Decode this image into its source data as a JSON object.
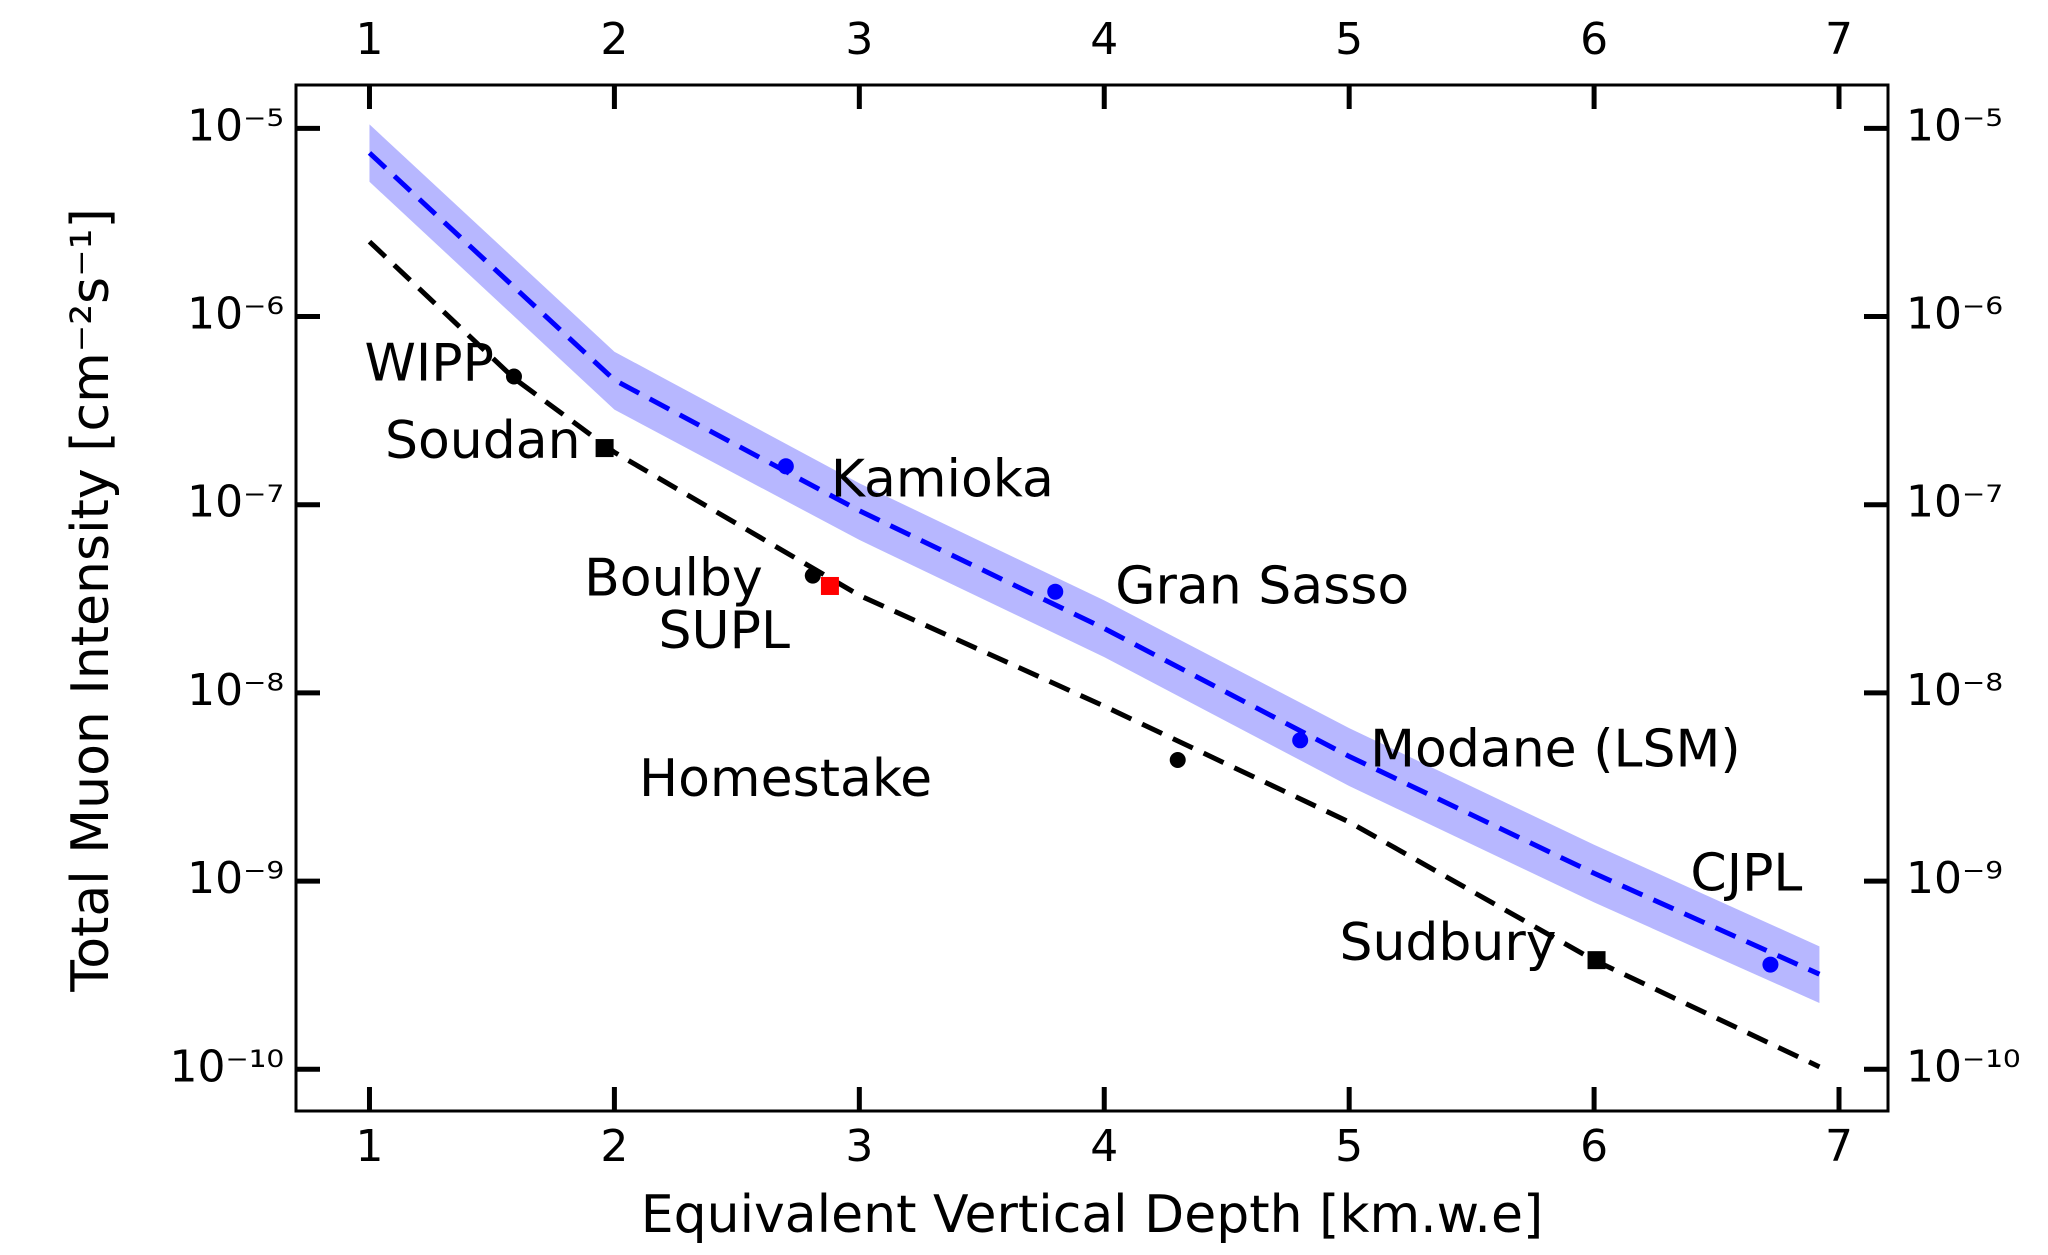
{
  "chart_data": {
    "type": "line",
    "x_label": "Equivalent Vertical Depth [km.w.e]",
    "y_label": "Total Muon Intensity [cm⁻²s⁻¹]",
    "xlim": [
      0.7,
      7.2
    ],
    "xticks": [
      1,
      2,
      3,
      4,
      5,
      6,
      7
    ],
    "ylim": [
      6e-11,
      1.7e-05
    ],
    "log_y": true,
    "yticks": [
      {
        "value": 1e-05,
        "label": "10⁻⁵"
      },
      {
        "value": 1e-06,
        "label": "10⁻⁶"
      },
      {
        "value": 1e-07,
        "label": "10⁻⁷"
      },
      {
        "value": 1e-08,
        "label": "10⁻⁸"
      },
      {
        "value": 1e-09,
        "label": "10⁻⁹"
      },
      {
        "value": 1e-10,
        "label": "10⁻¹⁰"
      }
    ],
    "curves": [
      {
        "color": "#0000ff",
        "band_color": "#aaaaff",
        "x": [
          1,
          2,
          3,
          4,
          5,
          6,
          6.92
        ],
        "values": [
          7.4e-06,
          4.6e-07,
          9.3e-08,
          2.2e-08,
          4.6e-09,
          1.1e-09,
          3.2e-10
        ],
        "band_lower": [
          5.2e-06,
          3.2e-07,
          6.5e-08,
          1.55e-08,
          3.2e-09,
          7.7e-10,
          2.25e-10
        ],
        "band_upper": [
          1.05e-05,
          6.5e-07,
          1.3e-07,
          3.1e-08,
          6.5e-09,
          1.56e-09,
          4.5e-10
        ]
      },
      {
        "color": "#000000",
        "x": [
          1,
          1.59,
          2,
          3,
          4,
          5,
          6,
          6.92
        ],
        "values": [
          2.5e-06,
          4.7e-07,
          1.9e-07,
          3.3e-08,
          8.5e-09,
          2.06e-09,
          3.8e-10,
          1.03e-10
        ]
      }
    ],
    "sites": [
      {
        "label": "WIPP",
        "x": 1.59,
        "y": 4.8e-07,
        "color": "#000000",
        "marker": "circle"
      },
      {
        "label": "Soudan",
        "x": 1.96,
        "y": 2e-07,
        "color": "#000000",
        "marker": "square"
      },
      {
        "label": "Kamioka",
        "x": 2.7,
        "y": 1.6e-07,
        "color": "#0000ff",
        "marker": "circle"
      },
      {
        "label": "Boulby",
        "x": 2.81,
        "y": 4.2e-08,
        "color": "#000000",
        "marker": "circle"
      },
      {
        "label": "SUPL",
        "x": 2.88,
        "y": 3.7e-08,
        "color": "#ff0000",
        "marker": "square"
      },
      {
        "label": "Gran Sasso",
        "x": 3.8,
        "y": 3.45e-08,
        "color": "#0000ff",
        "marker": "circle"
      },
      {
        "label": "Homestake",
        "x": 4.3,
        "y": 4.4e-09,
        "color": "#000000",
        "marker": "circle"
      },
      {
        "label": "Modane (LSM)",
        "x": 4.8,
        "y": 5.6e-09,
        "color": "#0000ff",
        "marker": "circle"
      },
      {
        "label": "CJPL",
        "x": 6.72,
        "y": 3.6e-10,
        "color": "#0000ff",
        "marker": "circle"
      },
      {
        "label": "Sudbury",
        "x": 6.01,
        "y": 3.8e-10,
        "color": "#000000",
        "marker": "square"
      }
    ]
  }
}
